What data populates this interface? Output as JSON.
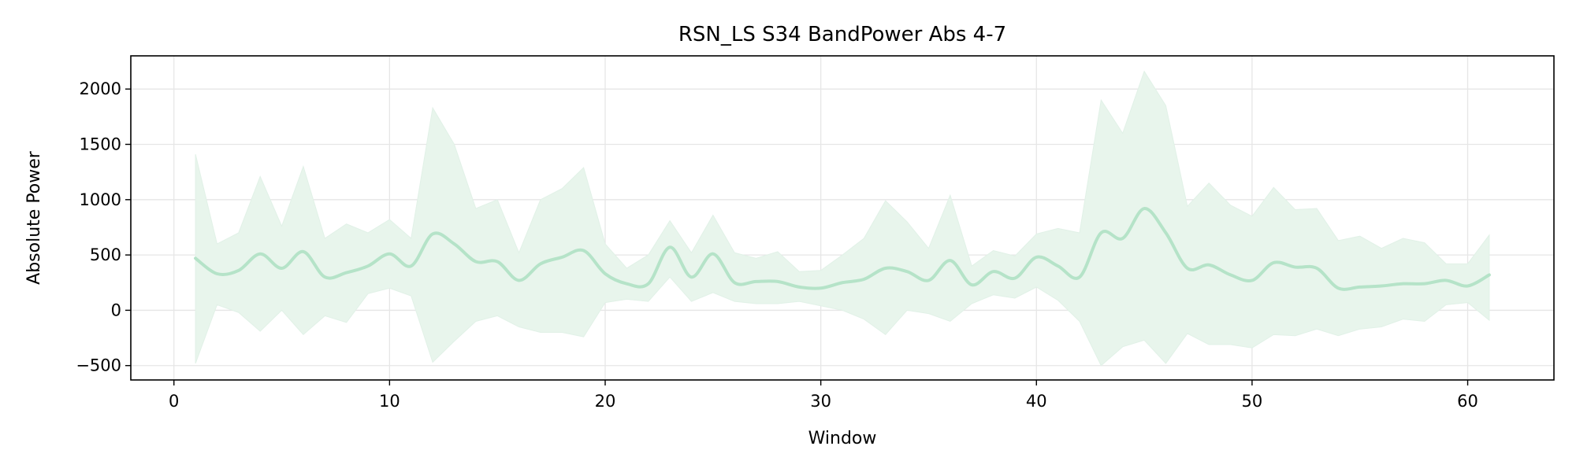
{
  "chart_data": {
    "type": "line",
    "title": "RSN_LS S34 BandPower Abs 4-7",
    "xlabel": "Window",
    "ylabel": "Absolute Power",
    "xlim": [
      -2,
      64
    ],
    "ylim": [
      -630,
      2300
    ],
    "xticks": [
      0,
      10,
      20,
      30,
      40,
      50,
      60
    ],
    "yticks": [
      -500,
      0,
      500,
      1000,
      1500,
      2000
    ],
    "ytick_labels": [
      "−500",
      "0",
      "500",
      "1000",
      "1500",
      "2000"
    ],
    "grid": true,
    "legend": "none",
    "colors": {
      "line": "#b5e3c8",
      "band": "#e8f5ec",
      "grid": "#e6e6e6"
    },
    "series": [
      {
        "x": [
          1,
          2,
          3,
          4,
          5,
          6,
          7,
          8,
          9,
          10,
          11,
          12,
          13,
          14,
          15,
          16,
          17,
          18,
          19,
          20,
          21,
          22,
          23,
          24,
          25,
          26,
          27,
          28,
          29,
          30,
          31,
          32,
          33,
          34,
          35,
          36,
          37,
          38,
          39,
          40,
          41,
          42,
          43,
          44,
          45,
          46,
          47,
          48,
          49,
          50,
          51,
          52,
          53,
          54,
          55,
          56,
          57,
          58,
          59,
          60,
          61
        ],
        "mean": [
          470,
          330,
          360,
          510,
          380,
          530,
          300,
          340,
          400,
          510,
          400,
          690,
          600,
          440,
          440,
          270,
          420,
          480,
          540,
          330,
          240,
          240,
          570,
          300,
          510,
          250,
          260,
          260,
          210,
          200,
          250,
          280,
          380,
          350,
          270,
          450,
          230,
          350,
          290,
          480,
          400,
          300,
          700,
          650,
          920,
          700,
          380,
          410,
          320,
          270,
          430,
          390,
          380,
          200,
          210,
          220,
          240,
          240,
          270,
          220,
          320
        ],
        "upper": [
          1410,
          600,
          700,
          1210,
          760,
          1300,
          650,
          780,
          700,
          820,
          650,
          1830,
          1500,
          920,
          1000,
          520,
          1000,
          1100,
          1290,
          600,
          380,
          500,
          810,
          520,
          860,
          520,
          470,
          530,
          350,
          360,
          500,
          650,
          990,
          800,
          560,
          1040,
          400,
          540,
          490,
          690,
          740,
          700,
          1900,
          1600,
          2160,
          1850,
          940,
          1150,
          950,
          850,
          1110,
          910,
          920,
          630,
          670,
          560,
          650,
          610,
          420,
          420,
          680
        ],
        "lower": [
          -480,
          50,
          -20,
          -190,
          0,
          -220,
          -50,
          -110,
          150,
          200,
          130,
          -470,
          -280,
          -100,
          -50,
          -150,
          -200,
          -200,
          -240,
          70,
          100,
          80,
          300,
          80,
          160,
          80,
          60,
          60,
          80,
          40,
          0,
          -80,
          -220,
          0,
          -30,
          -100,
          60,
          140,
          110,
          210,
          90,
          -100,
          -500,
          -330,
          -270,
          -480,
          -210,
          -310,
          -310,
          -340,
          -220,
          -230,
          -170,
          -230,
          -170,
          -150,
          -80,
          -100,
          50,
          70,
          -90
        ]
      }
    ]
  }
}
